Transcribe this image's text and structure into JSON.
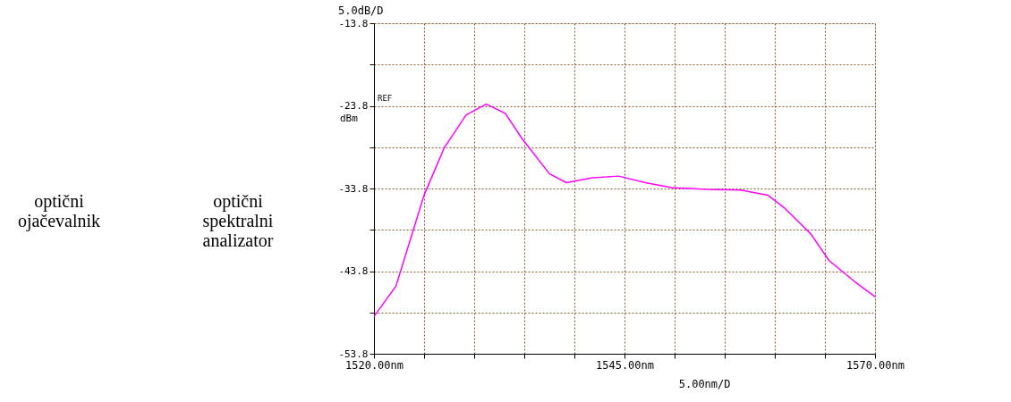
{
  "chart_data": {
    "type": "line",
    "x": [
      1520,
      1522.2,
      1525.0,
      1527.0,
      1529.2,
      1531.2,
      1533.1,
      1534.8,
      1537.5,
      1539.2,
      1541.8,
      1544.4,
      1547.1,
      1549.7,
      1553.2,
      1556.6,
      1559.3,
      1561.0,
      1563.6,
      1565.4,
      1568.0,
      1570
    ],
    "series": [
      {
        "color": "#ff00ff",
        "values": [
          -49.3,
          -45.6,
          -34.6,
          -28.9,
          -24.9,
          -23.6,
          -24.7,
          -27.8,
          -32.0,
          -33.1,
          -32.5,
          -32.3,
          -33.1,
          -33.7,
          -33.9,
          -34.0,
          -34.6,
          -36.2,
          -39.3,
          -42.5,
          -45.1,
          -46.9
        ]
      }
    ],
    "xlim": [
      1520,
      1570
    ],
    "xticks": [
      {
        "value": 1520,
        "label": "1520.00nm"
      },
      {
        "value": 1525,
        "label": null
      },
      {
        "value": 1530,
        "label": null
      },
      {
        "value": 1535,
        "label": null
      },
      {
        "value": 1540,
        "label": null
      },
      {
        "value": 1545,
        "label": "1545.00nm"
      },
      {
        "value": 1550,
        "label": null
      },
      {
        "value": 1555,
        "label": null
      },
      {
        "value": 1560,
        "label": null
      },
      {
        "value": 1565,
        "label": null
      },
      {
        "value": 1570,
        "label": "1570.00nm"
      }
    ],
    "ylim": [
      -53.8,
      -13.8
    ],
    "yticks": [
      -53.8,
      {
        "value": -48.8,
        "label": null
      },
      -43.8,
      {
        "value": -38.8,
        "label": null
      },
      -33.8,
      {
        "value": -28.8,
        "label": null
      },
      -23.8,
      {
        "value": -18.8,
        "label": null
      },
      -13.8
    ],
    "grid": true,
    "marker": "none",
    "line_style": "solid",
    "annotations": [
      "optični\nojačevalnik",
      "optični\nspektralni\nanalizator",
      "5.0dB/D",
      "REF",
      "dBm",
      "5.00nm/D"
    ]
  }
}
